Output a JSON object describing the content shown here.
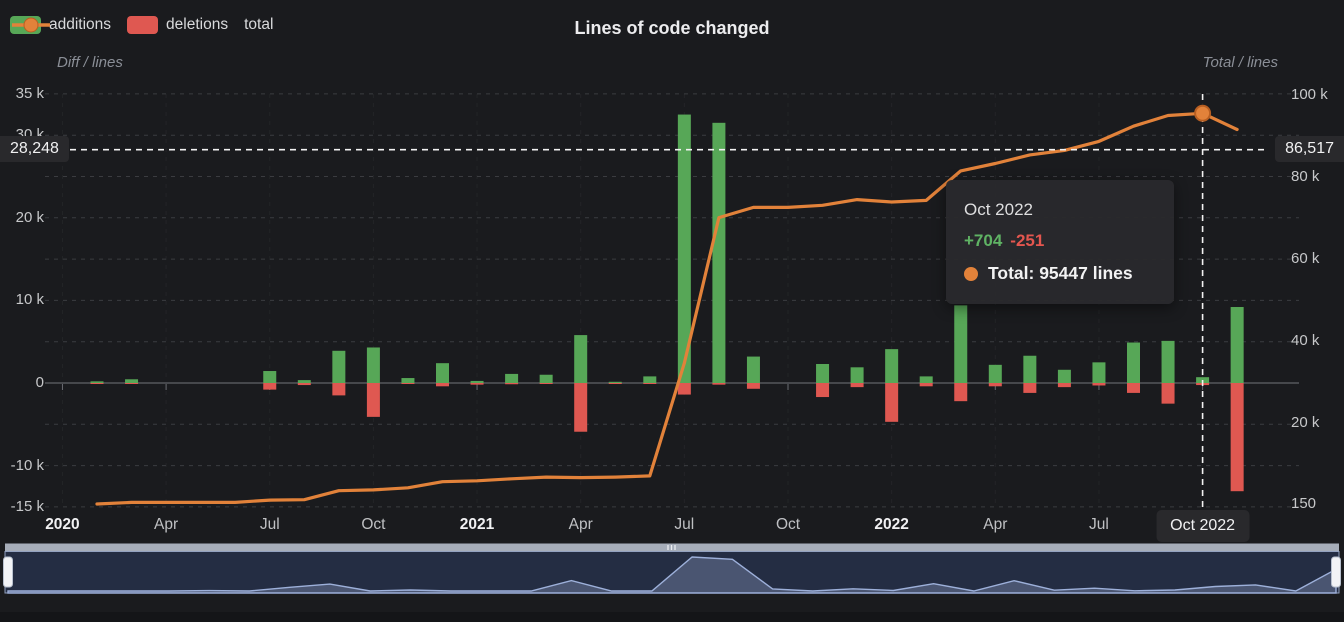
{
  "header": {
    "title": "Lines of code changed",
    "legend": [
      {
        "label": "additions",
        "color": "#57a757",
        "type": "bar"
      },
      {
        "label": "deletions",
        "color": "#df5851",
        "type": "bar"
      },
      {
        "label": "total",
        "color": "#e2823a",
        "type": "line"
      }
    ]
  },
  "tooltip": {
    "title": "Oct 2022",
    "additions": "+704",
    "deletions": "-251",
    "total": "Total: 95447 lines"
  },
  "crosshair": {
    "x_label": "Oct 2022",
    "left_label": "28,248",
    "right_label": "86,517",
    "diff_value": 28248,
    "total_value": 86517,
    "month_index": 32
  },
  "chart_data": {
    "type": "combo",
    "categories": [
      "Feb 2020",
      "Mar 2020",
      "Apr 2020",
      "May 2020",
      "Jun 2020",
      "Jul 2020",
      "Aug 2020",
      "Sep 2020",
      "Oct 2020",
      "Nov 2020",
      "Dec 2020",
      "Jan 2021",
      "Feb 2021",
      "Mar 2021",
      "Apr 2021",
      "May 2021",
      "Jun 2021",
      "Jul 2021",
      "Aug 2021",
      "Sep 2021",
      "Oct 2021",
      "Nov 2021",
      "Dec 2021",
      "Jan 2022",
      "Feb 2022",
      "Mar 2022",
      "Apr 2022",
      "May 2022",
      "Jun 2022",
      "Jul 2022",
      "Aug 2022",
      "Sep 2022",
      "Oct 2022",
      "Nov 2022"
    ],
    "series": [
      {
        "name": "additions",
        "type": "bar",
        "axis": "left",
        "color": "#57a757",
        "values": [
          200,
          450,
          0,
          0,
          0,
          1450,
          350,
          3900,
          4300,
          600,
          2400,
          250,
          1100,
          1000,
          5800,
          100,
          800,
          32500,
          31500,
          3200,
          0,
          2300,
          1900,
          4100,
          800,
          9400,
          2200,
          3300,
          1600,
          2500,
          4900,
          5100,
          704,
          9200
        ]
      },
      {
        "name": "deletions",
        "type": "bar",
        "axis": "left",
        "color": "#df5851",
        "values": [
          50,
          50,
          0,
          0,
          0,
          800,
          250,
          1500,
          4100,
          100,
          400,
          200,
          150,
          100,
          5900,
          50,
          100,
          1400,
          200,
          700,
          0,
          1700,
          500,
          4700,
          400,
          2200,
          400,
          1200,
          500,
          300,
          1200,
          2500,
          251,
          13100
        ]
      },
      {
        "name": "total",
        "type": "line",
        "axis": "right",
        "color": "#e2823a",
        "values": [
          150,
          550,
          550,
          550,
          550,
          1100,
          1200,
          3400,
          3600,
          4100,
          5600,
          5800,
          6300,
          6700,
          6600,
          6700,
          7000,
          34500,
          70000,
          72500,
          72500,
          73000,
          74400,
          73800,
          74200,
          81400,
          83200,
          85300,
          86400,
          88600,
          92300,
          94900,
          95447,
          91500
        ]
      }
    ],
    "highlight": {
      "month": "Oct 2022",
      "month_index": 32,
      "total": 95447
    },
    "left_axis": {
      "name": "Diff / lines",
      "ticks": [
        {
          "label": "35 k",
          "value": 35000
        },
        {
          "label": "30 k",
          "value": 30000
        },
        {
          "label": "20 k",
          "value": 20000
        },
        {
          "label": "10 k",
          "value": 10000
        },
        {
          "label": "0",
          "value": 0
        },
        {
          "label": "-10 k",
          "value": -10000
        },
        {
          "label": "-15 k",
          "value": -15000
        }
      ],
      "gridline_values": [
        35000,
        30000,
        25000,
        20000,
        15000,
        10000,
        5000,
        -5000,
        -10000,
        -15000
      ],
      "range": [
        -16000,
        35000
      ]
    },
    "right_axis": {
      "name": "Total / lines",
      "ticks": [
        {
          "label": "100 k",
          "value": 100000
        },
        {
          "label": "80 k",
          "value": 80000
        },
        {
          "label": "60 k",
          "value": 60000
        },
        {
          "label": "40 k",
          "value": 40000
        },
        {
          "label": "20 k",
          "value": 20000
        },
        {
          "label": "150",
          "value": 150
        }
      ],
      "range": [
        150,
        102000
      ]
    },
    "x_axis": {
      "ticks": [
        {
          "label": "2020",
          "month_index": -1,
          "bold": true
        },
        {
          "label": "Apr",
          "month_index": 2,
          "bold": false
        },
        {
          "label": "Jul",
          "month_index": 5,
          "bold": false
        },
        {
          "label": "Oct",
          "month_index": 8,
          "bold": false
        },
        {
          "label": "2021",
          "month_index": 11,
          "bold": true
        },
        {
          "label": "Apr",
          "month_index": 14,
          "bold": false
        },
        {
          "label": "Jul",
          "month_index": 17,
          "bold": false
        },
        {
          "label": "Oct",
          "month_index": 20,
          "bold": false
        },
        {
          "label": "2022",
          "month_index": 23,
          "bold": true
        },
        {
          "label": "Apr",
          "month_index": 26,
          "bold": false
        },
        {
          "label": "Jul",
          "month_index": 29,
          "bold": false
        }
      ]
    },
    "legend_position": "top-left",
    "grid": true
  },
  "navigator": {
    "selected_start": 0,
    "selected_end": 1,
    "shadow_series": "additions+deletions"
  },
  "colors": {
    "background": "#1a1b1e",
    "additions": "#57a757",
    "deletions": "#df5851",
    "total": "#e2823a",
    "total_dot_stroke": "#b85f22",
    "gridline": "#3b3c40",
    "axis_line": "#55575c",
    "crosshair": "#f2f2f2",
    "label_box_bg": "#29292c",
    "nav_scrollbar": "#a6adb9",
    "nav_bg": "#242d43",
    "nav_area_fill": "#4a5571",
    "nav_area_line": "#9db0da",
    "nav_border": "#93a2c0",
    "nav_handle": "#f2f3f6",
    "bottom_strip": "#141518"
  }
}
